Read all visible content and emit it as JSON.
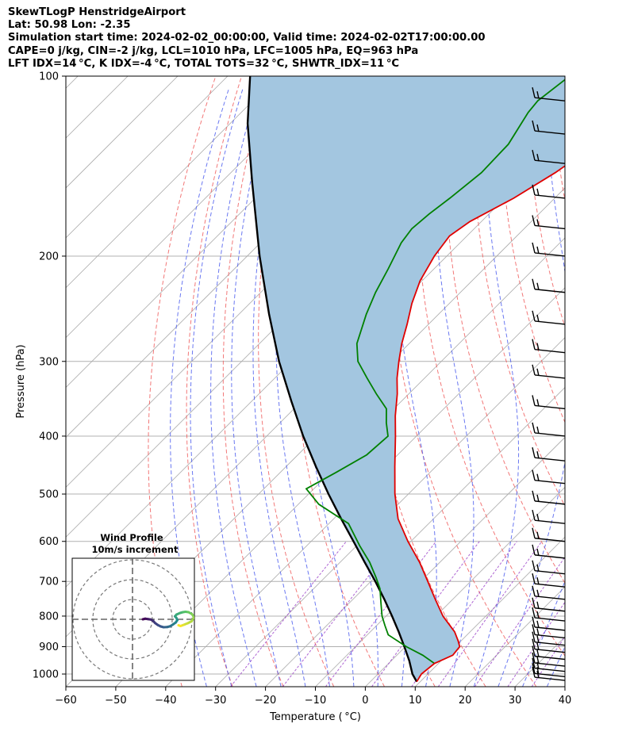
{
  "header": {
    "line1": "SkewTLogP HenstridgeAirport",
    "line2": "Lat: 50.98   Lon: -2.35",
    "line3": "Simulation start time: 2024-02-02_00:00:00, Valid time: 2024-02-02T17:00:00.00",
    "line4": "CAPE=0 j/kg, CIN=-2 j/kg, LCL=1010 hPa, LFC=1005 hPa, EQ=963 hPa",
    "line5": "LFT IDX=14 °C, K IDX=-4 °C, TOTAL TOTS=32 °C, SHWTR_IDX=11 °C"
  },
  "colors": {
    "temperature": "#e00000",
    "dewpoint": "#008000",
    "parcel": "#000000",
    "shade": "#a3c6e0",
    "dry_adiabat": "#f06060",
    "moist_adiabat": "#5060ee",
    "mixing_ratio": "#9a40c8",
    "isotherm": "#aaaaaa"
  },
  "inset": {
    "title": "Wind Profile",
    "subtitle": "10m/s increment"
  },
  "chart_data": {
    "type": "line",
    "xlabel": "Temperature ( °C)",
    "ylabel": "Pressure (hPa)",
    "xlim": [
      -60,
      40
    ],
    "ylim": [
      1050,
      100
    ],
    "y_scale": "log",
    "skew": true,
    "xticks": [
      -60,
      -50,
      -40,
      -30,
      -20,
      -10,
      0,
      10,
      20,
      30,
      40
    ],
    "yticks": [
      1000,
      900,
      800,
      700,
      600,
      500,
      400,
      300,
      200,
      100
    ],
    "grid": true,
    "series": [
      {
        "key": "temperature",
        "pressure": [
          1030,
          1000,
          960,
          930,
          900,
          880,
          850,
          800,
          750,
          700,
          650,
          600,
          550,
          500,
          450,
          400,
          370,
          340,
          320,
          300,
          280,
          260,
          240,
          220,
          200,
          185,
          175,
          160,
          145,
          130,
          120,
          115,
          110,
          105,
          100
        ],
        "values": [
          9.3,
          8.7,
          9.2,
          11.2,
          10.9,
          9.4,
          6.9,
          1.4,
          -3.5,
          -8.6,
          -14.1,
          -20.6,
          -27.1,
          -32.7,
          -38.2,
          -44.2,
          -48.3,
          -52.3,
          -55.5,
          -58.5,
          -61.5,
          -64.3,
          -67.5,
          -70.4,
          -72.5,
          -73.5,
          -72.3,
          -68.2,
          -65.0,
          -62.5,
          -60.0,
          -57.0,
          -52.6,
          -48.3,
          -45.0
        ]
      },
      {
        "key": "dewpoint",
        "pressure": [
          960,
          930,
          900,
          860,
          830,
          800,
          760,
          720,
          690,
          650,
          610,
          560,
          520,
          490,
          460,
          430,
          400,
          380,
          360,
          340,
          320,
          300,
          280,
          250,
          230,
          210,
          190,
          180,
          170,
          160,
          145,
          130,
          115,
          110,
          100
        ],
        "values": [
          9.2,
          5.2,
          0.2,
          -5.8,
          -8.3,
          -10.8,
          -13.7,
          -16.7,
          -19.7,
          -24.1,
          -29.4,
          -36.1,
          -45.9,
          -51.5,
          -48.8,
          -46.2,
          -45.7,
          -48.7,
          -51.5,
          -56.5,
          -61.5,
          -66.7,
          -70.5,
          -74.5,
          -77.0,
          -79.2,
          -81.8,
          -82.5,
          -82.0,
          -81.0,
          -79.8,
          -80.1,
          -82.5,
          -82.9,
          -81.5
        ]
      },
      {
        "key": "parcel",
        "pressure": [
          1030,
          1000,
          950,
          900,
          850,
          800,
          750,
          700,
          650,
          600,
          550,
          500,
          450,
          400,
          350,
          300,
          250,
          200,
          150,
          120,
          100
        ],
        "values": [
          9.3,
          6.9,
          3.6,
          -0.2,
          -4.3,
          -8.8,
          -13.7,
          -19.1,
          -25.1,
          -31.5,
          -38.5,
          -46.0,
          -54.0,
          -62.7,
          -72.0,
          -82.5,
          -94.0,
          -107.5,
          -124.0,
          -136.5,
          -145.5
        ]
      }
    ],
    "wind_barbs_pressure": [
      1025,
      1010,
      990,
      970,
      945,
      920,
      895,
      870,
      845,
      815,
      785,
      750,
      715,
      680,
      640,
      600,
      560,
      520,
      480,
      440,
      400,
      360,
      320,
      290,
      260,
      230,
      200,
      180,
      160,
      140,
      125,
      110
    ],
    "hodograph": {
      "rings_m_s": [
        10,
        20,
        30
      ],
      "u": [
        0,
        1.2,
        2.6,
        4.0,
        5.2,
        6.2,
        7.6,
        9.0,
        10.5,
        12.3,
        13.8,
        15.2,
        16.6,
        17.4,
        17.0,
        16.2,
        17.0,
        18.8,
        20.2,
        21.5,
        23.0,
        24.8,
        25.8,
        24.6,
        22.6,
        20.6,
        19.0,
        18.0
      ],
      "v": [
        0,
        0.3,
        0.1,
        -0.1,
        -0.8,
        -1.9,
        -2.9,
        -3.6,
        -4.0,
        -3.9,
        -3.5,
        -2.6,
        -1.6,
        -0.4,
        0.6,
        1.5,
        2.4,
        3.2,
        3.6,
        3.8,
        3.6,
        2.6,
        1.0,
        -1.0,
        -2.0,
        -2.8,
        -3.4,
        -3.0
      ]
    }
  }
}
